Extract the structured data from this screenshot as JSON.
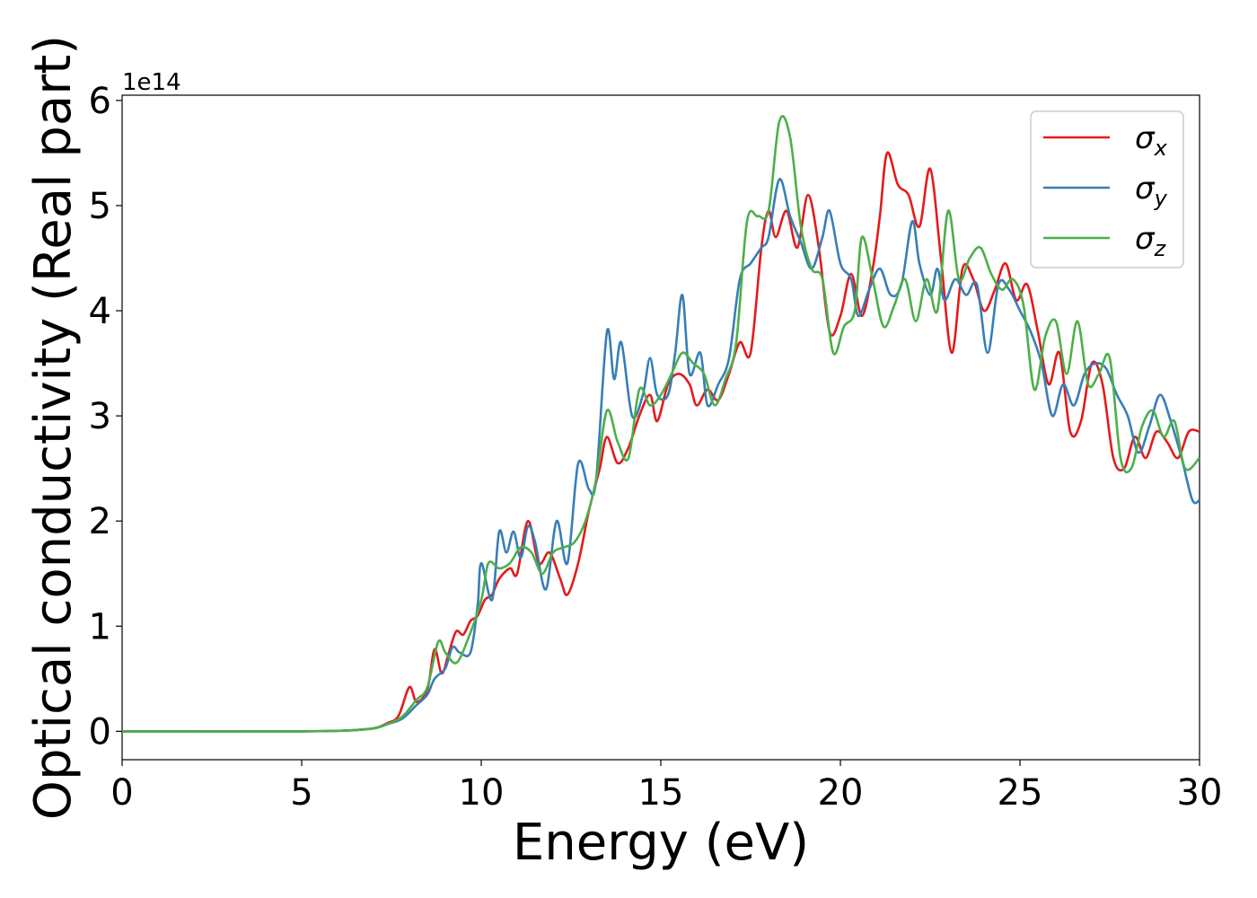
{
  "chart_data": {
    "type": "line",
    "xlabel": "Energy (eV)",
    "ylabel": "Optical conductivity (Real part)",
    "y_offset_label": "1e14",
    "y_scale": 100000000000000.0,
    "xlim": [
      0,
      30
    ],
    "ylim": [
      -0.27,
      6.05
    ],
    "x_ticks": [
      0,
      5,
      10,
      15,
      20,
      25,
      30
    ],
    "x_tick_labels": [
      "0",
      "5",
      "10",
      "15",
      "20",
      "25",
      "30"
    ],
    "y_ticks": [
      0,
      1,
      2,
      3,
      4,
      5,
      6
    ],
    "y_tick_labels": [
      "0",
      "1",
      "2",
      "3",
      "4",
      "5",
      "6"
    ],
    "grid": false,
    "legend_position": "top-right",
    "series": [
      {
        "name": "σx",
        "legend_base": "σ",
        "legend_sub": "x",
        "color": "#e41a1c",
        "points": [
          [
            0,
            0
          ],
          [
            5,
            0
          ],
          [
            6.8,
            0.02
          ],
          [
            7.4,
            0.08
          ],
          [
            7.7,
            0.15
          ],
          [
            8.0,
            0.42
          ],
          [
            8.2,
            0.28
          ],
          [
            8.5,
            0.4
          ],
          [
            8.7,
            0.78
          ],
          [
            8.9,
            0.55
          ],
          [
            9.1,
            0.75
          ],
          [
            9.3,
            0.95
          ],
          [
            9.5,
            0.92
          ],
          [
            9.7,
            1.05
          ],
          [
            9.9,
            1.1
          ],
          [
            10.1,
            1.25
          ],
          [
            10.3,
            1.3
          ],
          [
            10.5,
            1.45
          ],
          [
            10.8,
            1.55
          ],
          [
            11.0,
            1.5
          ],
          [
            11.3,
            2.0
          ],
          [
            11.6,
            1.6
          ],
          [
            11.9,
            1.7
          ],
          [
            12.2,
            1.45
          ],
          [
            12.4,
            1.3
          ],
          [
            12.7,
            1.6
          ],
          [
            13.0,
            2.1
          ],
          [
            13.3,
            2.5
          ],
          [
            13.5,
            2.8
          ],
          [
            13.8,
            2.55
          ],
          [
            14.1,
            2.7
          ],
          [
            14.4,
            3.0
          ],
          [
            14.7,
            3.2
          ],
          [
            14.9,
            2.95
          ],
          [
            15.2,
            3.3
          ],
          [
            15.5,
            3.4
          ],
          [
            15.8,
            3.3
          ],
          [
            16.0,
            3.1
          ],
          [
            16.3,
            3.25
          ],
          [
            16.6,
            3.15
          ],
          [
            16.9,
            3.4
          ],
          [
            17.2,
            3.7
          ],
          [
            17.5,
            3.6
          ],
          [
            17.8,
            4.6
          ],
          [
            18.0,
            4.95
          ],
          [
            18.2,
            4.7
          ],
          [
            18.5,
            4.95
          ],
          [
            18.8,
            4.6
          ],
          [
            19.1,
            5.1
          ],
          [
            19.4,
            4.6
          ],
          [
            19.7,
            3.8
          ],
          [
            20.0,
            3.95
          ],
          [
            20.3,
            4.35
          ],
          [
            20.6,
            3.95
          ],
          [
            20.9,
            4.4
          ],
          [
            21.1,
            4.9
          ],
          [
            21.3,
            5.5
          ],
          [
            21.6,
            5.2
          ],
          [
            21.9,
            5.1
          ],
          [
            22.2,
            4.8
          ],
          [
            22.5,
            5.35
          ],
          [
            22.8,
            4.5
          ],
          [
            23.1,
            3.6
          ],
          [
            23.4,
            4.4
          ],
          [
            23.7,
            4.3
          ],
          [
            24.0,
            4.0
          ],
          [
            24.3,
            4.2
          ],
          [
            24.6,
            4.45
          ],
          [
            24.9,
            4.1
          ],
          [
            25.2,
            4.25
          ],
          [
            25.5,
            3.8
          ],
          [
            25.8,
            3.3
          ],
          [
            26.1,
            3.6
          ],
          [
            26.4,
            2.85
          ],
          [
            26.7,
            2.95
          ],
          [
            27.0,
            3.5
          ],
          [
            27.3,
            3.3
          ],
          [
            27.6,
            2.6
          ],
          [
            27.9,
            2.5
          ],
          [
            28.2,
            2.8
          ],
          [
            28.5,
            2.6
          ],
          [
            28.8,
            2.85
          ],
          [
            29.1,
            2.75
          ],
          [
            29.4,
            2.6
          ],
          [
            29.7,
            2.85
          ],
          [
            30.0,
            2.85
          ]
        ]
      },
      {
        "name": "σy",
        "legend_base": "σ",
        "legend_sub": "y",
        "color": "#377eb8",
        "points": [
          [
            0,
            0
          ],
          [
            5,
            0
          ],
          [
            6.8,
            0.02
          ],
          [
            7.4,
            0.07
          ],
          [
            7.8,
            0.12
          ],
          [
            8.2,
            0.25
          ],
          [
            8.5,
            0.35
          ],
          [
            8.7,
            0.5
          ],
          [
            9.0,
            0.6
          ],
          [
            9.2,
            0.8
          ],
          [
            9.4,
            0.75
          ],
          [
            9.7,
            0.75
          ],
          [
            9.9,
            1.2
          ],
          [
            10.0,
            1.6
          ],
          [
            10.3,
            1.25
          ],
          [
            10.5,
            1.9
          ],
          [
            10.7,
            1.7
          ],
          [
            10.9,
            1.9
          ],
          [
            11.1,
            1.65
          ],
          [
            11.3,
            1.95
          ],
          [
            11.5,
            1.8
          ],
          [
            11.8,
            1.35
          ],
          [
            12.1,
            2.0
          ],
          [
            12.4,
            1.6
          ],
          [
            12.7,
            2.55
          ],
          [
            13.0,
            2.3
          ],
          [
            13.2,
            2.4
          ],
          [
            13.5,
            3.8
          ],
          [
            13.7,
            3.35
          ],
          [
            13.9,
            3.7
          ],
          [
            14.2,
            3.0
          ],
          [
            14.5,
            3.2
          ],
          [
            14.7,
            3.55
          ],
          [
            14.9,
            3.2
          ],
          [
            15.2,
            3.2
          ],
          [
            15.4,
            3.6
          ],
          [
            15.6,
            4.15
          ],
          [
            15.8,
            3.4
          ],
          [
            16.1,
            3.6
          ],
          [
            16.3,
            3.1
          ],
          [
            16.6,
            3.3
          ],
          [
            16.9,
            3.55
          ],
          [
            17.2,
            4.3
          ],
          [
            17.5,
            4.45
          ],
          [
            17.8,
            4.6
          ],
          [
            18.0,
            4.7
          ],
          [
            18.3,
            5.25
          ],
          [
            18.6,
            4.9
          ],
          [
            18.9,
            4.65
          ],
          [
            19.2,
            4.4
          ],
          [
            19.5,
            4.7
          ],
          [
            19.7,
            4.95
          ],
          [
            20.0,
            4.45
          ],
          [
            20.3,
            4.3
          ],
          [
            20.5,
            3.95
          ],
          [
            20.8,
            4.2
          ],
          [
            21.1,
            4.4
          ],
          [
            21.4,
            4.15
          ],
          [
            21.7,
            4.25
          ],
          [
            22.0,
            4.85
          ],
          [
            22.2,
            4.45
          ],
          [
            22.5,
            4.15
          ],
          [
            22.7,
            4.4
          ],
          [
            22.9,
            4.1
          ],
          [
            23.2,
            4.3
          ],
          [
            23.5,
            4.15
          ],
          [
            23.8,
            4.25
          ],
          [
            24.1,
            3.6
          ],
          [
            24.4,
            4.25
          ],
          [
            24.7,
            4.2
          ],
          [
            25.0,
            4.0
          ],
          [
            25.3,
            3.8
          ],
          [
            25.6,
            3.5
          ],
          [
            25.9,
            3.0
          ],
          [
            26.2,
            3.3
          ],
          [
            26.5,
            3.1
          ],
          [
            26.8,
            3.4
          ],
          [
            27.1,
            3.5
          ],
          [
            27.4,
            3.45
          ],
          [
            27.7,
            3.2
          ],
          [
            28.0,
            3.0
          ],
          [
            28.3,
            2.65
          ],
          [
            28.6,
            2.9
          ],
          [
            28.9,
            3.2
          ],
          [
            29.2,
            2.95
          ],
          [
            29.5,
            2.6
          ],
          [
            29.8,
            2.2
          ],
          [
            30.0,
            2.2
          ]
        ]
      },
      {
        "name": "σz",
        "legend_base": "σ",
        "legend_sub": "z",
        "color": "#4daf4a",
        "points": [
          [
            0,
            0
          ],
          [
            5,
            0
          ],
          [
            6.8,
            0.02
          ],
          [
            7.4,
            0.07
          ],
          [
            7.8,
            0.14
          ],
          [
            8.2,
            0.3
          ],
          [
            8.5,
            0.42
          ],
          [
            8.8,
            0.85
          ],
          [
            9.0,
            0.75
          ],
          [
            9.3,
            0.65
          ],
          [
            9.6,
            0.85
          ],
          [
            10.0,
            1.25
          ],
          [
            10.2,
            1.6
          ],
          [
            10.5,
            1.55
          ],
          [
            10.8,
            1.6
          ],
          [
            11.1,
            1.75
          ],
          [
            11.4,
            1.7
          ],
          [
            11.7,
            1.5
          ],
          [
            12.0,
            1.7
          ],
          [
            12.3,
            1.75
          ],
          [
            12.6,
            1.8
          ],
          [
            12.9,
            2.0
          ],
          [
            13.2,
            2.4
          ],
          [
            13.5,
            3.05
          ],
          [
            13.8,
            2.75
          ],
          [
            14.1,
            2.6
          ],
          [
            14.4,
            3.25
          ],
          [
            14.7,
            3.1
          ],
          [
            15.0,
            3.2
          ],
          [
            15.3,
            3.4
          ],
          [
            15.6,
            3.6
          ],
          [
            15.9,
            3.5
          ],
          [
            16.2,
            3.4
          ],
          [
            16.5,
            3.1
          ],
          [
            16.8,
            3.35
          ],
          [
            17.1,
            3.7
          ],
          [
            17.4,
            4.85
          ],
          [
            17.7,
            4.9
          ],
          [
            18.0,
            4.95
          ],
          [
            18.3,
            5.8
          ],
          [
            18.6,
            5.65
          ],
          [
            18.9,
            4.8
          ],
          [
            19.2,
            4.4
          ],
          [
            19.5,
            4.3
          ],
          [
            19.8,
            3.6
          ],
          [
            20.1,
            3.85
          ],
          [
            20.4,
            4.0
          ],
          [
            20.6,
            4.7
          ],
          [
            20.9,
            4.3
          ],
          [
            21.2,
            3.85
          ],
          [
            21.5,
            4.05
          ],
          [
            21.8,
            4.3
          ],
          [
            22.1,
            3.9
          ],
          [
            22.4,
            4.3
          ],
          [
            22.7,
            4.0
          ],
          [
            23.0,
            4.95
          ],
          [
            23.3,
            4.3
          ],
          [
            23.6,
            4.5
          ],
          [
            23.9,
            4.6
          ],
          [
            24.2,
            4.35
          ],
          [
            24.5,
            4.2
          ],
          [
            24.8,
            4.3
          ],
          [
            25.1,
            4.05
          ],
          [
            25.4,
            3.25
          ],
          [
            25.7,
            3.75
          ],
          [
            26.0,
            3.9
          ],
          [
            26.3,
            3.4
          ],
          [
            26.6,
            3.9
          ],
          [
            26.9,
            3.3
          ],
          [
            27.2,
            3.4
          ],
          [
            27.5,
            3.55
          ],
          [
            27.8,
            2.6
          ],
          [
            28.1,
            2.5
          ],
          [
            28.4,
            2.9
          ],
          [
            28.7,
            3.05
          ],
          [
            29.0,
            2.8
          ],
          [
            29.3,
            2.95
          ],
          [
            29.6,
            2.5
          ],
          [
            30.0,
            2.6
          ]
        ]
      }
    ]
  }
}
